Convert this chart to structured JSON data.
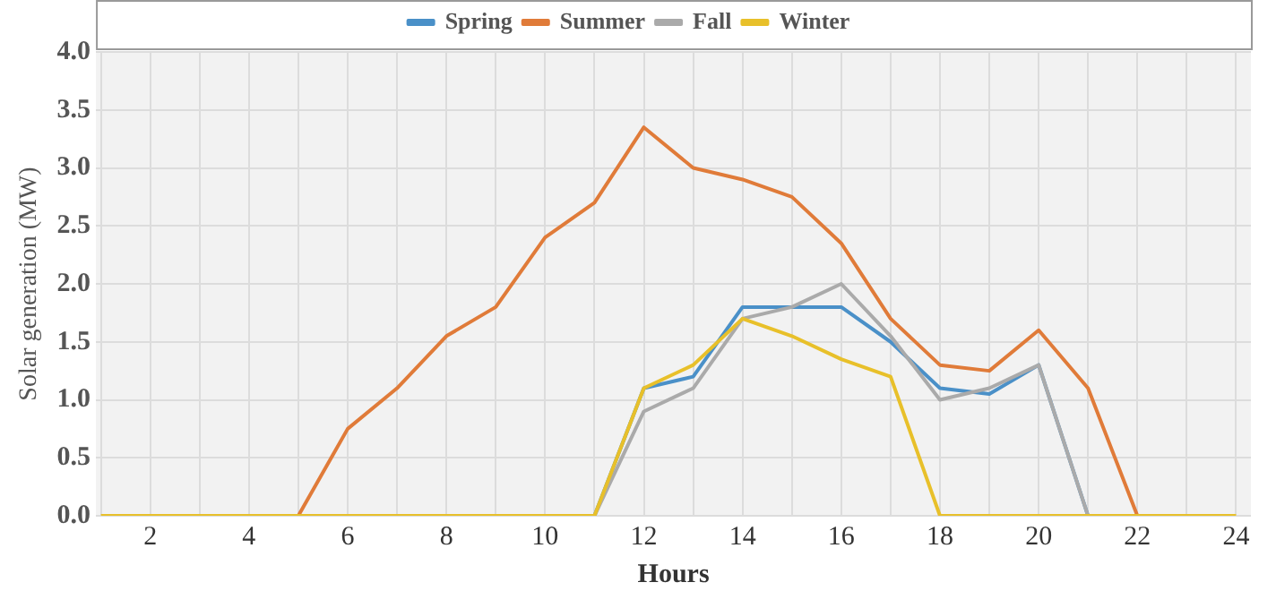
{
  "chart_data": {
    "type": "line",
    "xlabel": "Hours",
    "ylabel": "Solar generation (MW)",
    "x": [
      1,
      2,
      3,
      4,
      5,
      6,
      7,
      8,
      9,
      10,
      11,
      12,
      13,
      14,
      15,
      16,
      17,
      18,
      19,
      20,
      21,
      22,
      23,
      24
    ],
    "series": [
      {
        "name": "Spring",
        "color": "#4a90c8",
        "values": [
          null,
          null,
          null,
          null,
          null,
          null,
          null,
          null,
          null,
          null,
          0,
          1.1,
          1.2,
          1.8,
          1.8,
          1.8,
          1.5,
          1.1,
          1.05,
          1.3,
          0,
          null,
          null,
          null
        ]
      },
      {
        "name": "Summer",
        "color": "#e07b39",
        "values": [
          null,
          null,
          null,
          null,
          0,
          0.75,
          1.1,
          1.55,
          1.8,
          2.4,
          2.7,
          3.35,
          3.0,
          2.9,
          2.75,
          2.35,
          1.7,
          1.3,
          1.25,
          1.6,
          1.1,
          0,
          null,
          null
        ]
      },
      {
        "name": "Fall",
        "color": "#aaaaaa",
        "values": [
          null,
          null,
          null,
          null,
          null,
          null,
          null,
          null,
          null,
          null,
          0,
          0.9,
          1.1,
          1.7,
          1.8,
          2.0,
          1.55,
          1.0,
          1.1,
          1.3,
          0,
          null,
          null,
          null
        ]
      },
      {
        "name": "Winter",
        "color": "#e8c02a",
        "values": [
          0,
          0,
          0,
          0,
          0,
          0,
          0,
          0,
          0,
          0,
          0,
          1.1,
          1.3,
          1.7,
          1.55,
          1.35,
          1.2,
          0,
          0,
          0,
          0,
          0,
          0,
          0
        ]
      }
    ],
    "xlim": [
      0.9,
      24.3
    ],
    "xticks": [
      {
        "value": 1,
        "label": null
      },
      2,
      {
        "value": 3,
        "label": null
      },
      4,
      {
        "value": 5,
        "label": null
      },
      6,
      {
        "value": 7,
        "label": null
      },
      8,
      {
        "value": 9,
        "label": null
      },
      10,
      {
        "value": 11,
        "label": null
      },
      12,
      {
        "value": 13,
        "label": null
      },
      14,
      {
        "value": 15,
        "label": null
      },
      16,
      {
        "value": 17,
        "label": null
      },
      18,
      {
        "value": 19,
        "label": null
      },
      20,
      {
        "value": 21,
        "label": null
      },
      22,
      {
        "value": 23,
        "label": null
      },
      24
    ],
    "ylim": [
      0,
      4
    ],
    "yticks": [
      {
        "value": 0,
        "label": "0.0"
      },
      0.5,
      {
        "value": 1,
        "label": "1.0"
      },
      1.5,
      {
        "value": 2,
        "label": "2.0"
      },
      2.5,
      {
        "value": 3,
        "label": "3.0"
      },
      3.5,
      {
        "value": 4,
        "label": "4.0"
      }
    ],
    "grid": true,
    "legend": "top",
    "marker": "none",
    "line_style": "solid"
  }
}
